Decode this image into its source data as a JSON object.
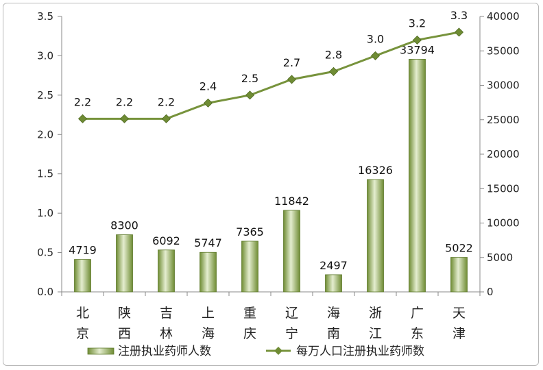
{
  "chart_data": {
    "type": "bar+line",
    "categories": [
      [
        "北",
        "京"
      ],
      [
        "陕",
        "西"
      ],
      [
        "吉",
        "林"
      ],
      [
        "上",
        "海"
      ],
      [
        "重",
        "庆"
      ],
      [
        "辽",
        "宁"
      ],
      [
        "海",
        "南"
      ],
      [
        "浙",
        "江"
      ],
      [
        "广",
        "东"
      ],
      [
        "天",
        "津"
      ]
    ],
    "series": [
      {
        "name": "注册执业药师人数",
        "type": "bar",
        "axis": "right",
        "values": [
          4719,
          8300,
          6092,
          5747,
          7365,
          11842,
          2497,
          16326,
          33794,
          5022
        ],
        "labels": [
          "4719",
          "8300",
          "6092",
          "5747",
          "7365",
          "11842",
          "2497",
          "16326",
          "33794",
          "5022"
        ]
      },
      {
        "name": "每万人口注册执业药师数",
        "type": "line",
        "axis": "left",
        "values": [
          2.2,
          2.2,
          2.2,
          2.4,
          2.5,
          2.7,
          2.8,
          3.0,
          3.2,
          3.3
        ],
        "labels": [
          "2.2",
          "2.2",
          "2.2",
          "2.4",
          "2.5",
          "2.7",
          "2.8",
          "3.0",
          "3.2",
          "3.3"
        ]
      }
    ],
    "left_axis": {
      "ylim": [
        0,
        3.5
      ],
      "ticks": [
        "0.0",
        "0.5",
        "1.0",
        "1.5",
        "2.0",
        "2.5",
        "3.0",
        "3.5"
      ]
    },
    "right_axis": {
      "ylim": [
        0,
        40000
      ],
      "ticks": [
        "0",
        "5000",
        "10000",
        "15000",
        "20000",
        "25000",
        "30000",
        "35000",
        "40000"
      ]
    },
    "legend_position": "bottom",
    "colors": {
      "bar": "#9bbb59",
      "bar_dark": "#6f8c34",
      "line": "#77933c",
      "marker": "#6f8c34"
    }
  }
}
